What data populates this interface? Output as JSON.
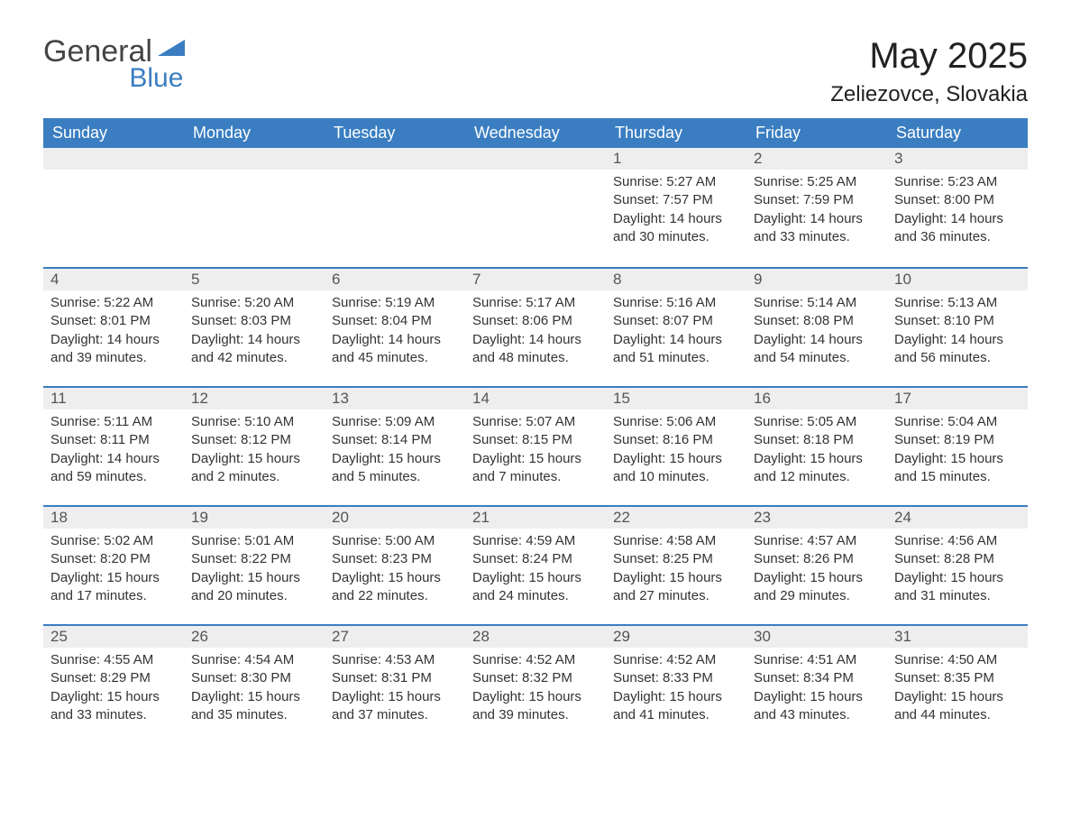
{
  "logo": {
    "line1": "General",
    "line2": "Blue"
  },
  "title": "May 2025",
  "subtitle": "Zeliezovce, Slovakia",
  "colors": {
    "accent": "#3a7ec1",
    "header_text": "#ffffff",
    "daybar_bg": "#eeeeee",
    "text": "#333333"
  },
  "weekdays": [
    "Sunday",
    "Monday",
    "Tuesday",
    "Wednesday",
    "Thursday",
    "Friday",
    "Saturday"
  ],
  "labels": {
    "sunrise": "Sunrise: ",
    "sunset": "Sunset: ",
    "daylight": "Daylight: "
  },
  "weeks": [
    [
      null,
      null,
      null,
      null,
      {
        "n": "1",
        "sunrise": "5:27 AM",
        "sunset": "7:57 PM",
        "daylight": "14 hours and 30 minutes."
      },
      {
        "n": "2",
        "sunrise": "5:25 AM",
        "sunset": "7:59 PM",
        "daylight": "14 hours and 33 minutes."
      },
      {
        "n": "3",
        "sunrise": "5:23 AM",
        "sunset": "8:00 PM",
        "daylight": "14 hours and 36 minutes."
      }
    ],
    [
      {
        "n": "4",
        "sunrise": "5:22 AM",
        "sunset": "8:01 PM",
        "daylight": "14 hours and 39 minutes."
      },
      {
        "n": "5",
        "sunrise": "5:20 AM",
        "sunset": "8:03 PM",
        "daylight": "14 hours and 42 minutes."
      },
      {
        "n": "6",
        "sunrise": "5:19 AM",
        "sunset": "8:04 PM",
        "daylight": "14 hours and 45 minutes."
      },
      {
        "n": "7",
        "sunrise": "5:17 AM",
        "sunset": "8:06 PM",
        "daylight": "14 hours and 48 minutes."
      },
      {
        "n": "8",
        "sunrise": "5:16 AM",
        "sunset": "8:07 PM",
        "daylight": "14 hours and 51 minutes."
      },
      {
        "n": "9",
        "sunrise": "5:14 AM",
        "sunset": "8:08 PM",
        "daylight": "14 hours and 54 minutes."
      },
      {
        "n": "10",
        "sunrise": "5:13 AM",
        "sunset": "8:10 PM",
        "daylight": "14 hours and 56 minutes."
      }
    ],
    [
      {
        "n": "11",
        "sunrise": "5:11 AM",
        "sunset": "8:11 PM",
        "daylight": "14 hours and 59 minutes."
      },
      {
        "n": "12",
        "sunrise": "5:10 AM",
        "sunset": "8:12 PM",
        "daylight": "15 hours and 2 minutes."
      },
      {
        "n": "13",
        "sunrise": "5:09 AM",
        "sunset": "8:14 PM",
        "daylight": "15 hours and 5 minutes."
      },
      {
        "n": "14",
        "sunrise": "5:07 AM",
        "sunset": "8:15 PM",
        "daylight": "15 hours and 7 minutes."
      },
      {
        "n": "15",
        "sunrise": "5:06 AM",
        "sunset": "8:16 PM",
        "daylight": "15 hours and 10 minutes."
      },
      {
        "n": "16",
        "sunrise": "5:05 AM",
        "sunset": "8:18 PM",
        "daylight": "15 hours and 12 minutes."
      },
      {
        "n": "17",
        "sunrise": "5:04 AM",
        "sunset": "8:19 PM",
        "daylight": "15 hours and 15 minutes."
      }
    ],
    [
      {
        "n": "18",
        "sunrise": "5:02 AM",
        "sunset": "8:20 PM",
        "daylight": "15 hours and 17 minutes."
      },
      {
        "n": "19",
        "sunrise": "5:01 AM",
        "sunset": "8:22 PM",
        "daylight": "15 hours and 20 minutes."
      },
      {
        "n": "20",
        "sunrise": "5:00 AM",
        "sunset": "8:23 PM",
        "daylight": "15 hours and 22 minutes."
      },
      {
        "n": "21",
        "sunrise": "4:59 AM",
        "sunset": "8:24 PM",
        "daylight": "15 hours and 24 minutes."
      },
      {
        "n": "22",
        "sunrise": "4:58 AM",
        "sunset": "8:25 PM",
        "daylight": "15 hours and 27 minutes."
      },
      {
        "n": "23",
        "sunrise": "4:57 AM",
        "sunset": "8:26 PM",
        "daylight": "15 hours and 29 minutes."
      },
      {
        "n": "24",
        "sunrise": "4:56 AM",
        "sunset": "8:28 PM",
        "daylight": "15 hours and 31 minutes."
      }
    ],
    [
      {
        "n": "25",
        "sunrise": "4:55 AM",
        "sunset": "8:29 PM",
        "daylight": "15 hours and 33 minutes."
      },
      {
        "n": "26",
        "sunrise": "4:54 AM",
        "sunset": "8:30 PM",
        "daylight": "15 hours and 35 minutes."
      },
      {
        "n": "27",
        "sunrise": "4:53 AM",
        "sunset": "8:31 PM",
        "daylight": "15 hours and 37 minutes."
      },
      {
        "n": "28",
        "sunrise": "4:52 AM",
        "sunset": "8:32 PM",
        "daylight": "15 hours and 39 minutes."
      },
      {
        "n": "29",
        "sunrise": "4:52 AM",
        "sunset": "8:33 PM",
        "daylight": "15 hours and 41 minutes."
      },
      {
        "n": "30",
        "sunrise": "4:51 AM",
        "sunset": "8:34 PM",
        "daylight": "15 hours and 43 minutes."
      },
      {
        "n": "31",
        "sunrise": "4:50 AM",
        "sunset": "8:35 PM",
        "daylight": "15 hours and 44 minutes."
      }
    ]
  ]
}
